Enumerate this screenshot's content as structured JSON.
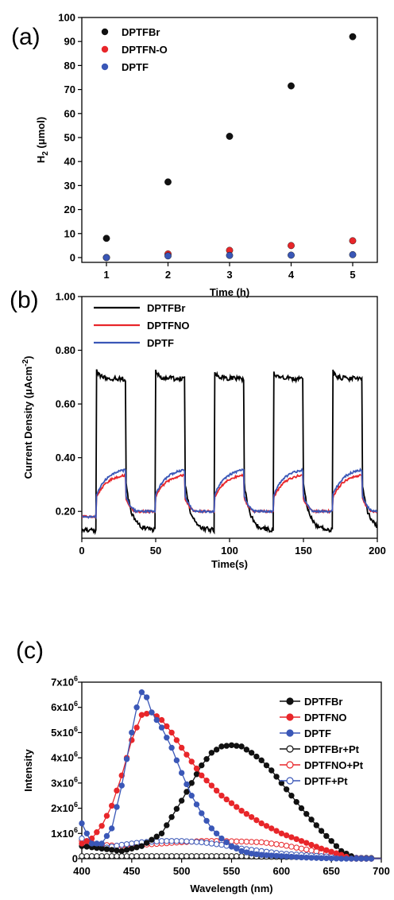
{
  "chart_data": [
    {
      "panel_label": "(a)",
      "type": "scatter",
      "xlabel": "Time (h)",
      "ylabel_main": "H",
      "ylabel_sub": "2",
      "ylabel_rest": " (μmol)",
      "xlim": [
        0.6,
        5.4
      ],
      "ylim": [
        -2,
        100
      ],
      "xticks": [
        "1",
        "2",
        "3",
        "4",
        "5"
      ],
      "xtick_values": [
        1,
        2,
        3,
        4,
        5
      ],
      "yticks": [
        "0",
        "10",
        "20",
        "30",
        "40",
        "50",
        "60",
        "70",
        "80",
        "90",
        "100"
      ],
      "ytick_values": [
        0,
        10,
        20,
        30,
        40,
        50,
        60,
        70,
        80,
        90,
        100
      ],
      "legend_position": "top-left",
      "series": [
        {
          "name": "DPTFBr",
          "color": "#111111",
          "x": [
            1,
            2,
            3,
            4,
            5
          ],
          "y": [
            8,
            31.5,
            50.5,
            71.5,
            92
          ]
        },
        {
          "name": "DPTFN-O",
          "color": "#e8262a",
          "x": [
            1,
            2,
            3,
            4,
            5
          ],
          "y": [
            0,
            1.5,
            3,
            5,
            7
          ]
        },
        {
          "name": "DPTF",
          "color": "#3a57b7",
          "x": [
            1,
            2,
            3,
            4,
            5
          ],
          "y": [
            0,
            0.7,
            0.9,
            1,
            1.2
          ]
        }
      ]
    },
    {
      "panel_label": "(b)",
      "type": "line",
      "xlabel": "Time(s)",
      "ylabel_main": "Current Density (μAcm",
      "ylabel_sup": "-2",
      "ylabel_rest": ")",
      "xlim": [
        0,
        200
      ],
      "ylim": [
        0.1,
        1.0
      ],
      "xticks": [
        "0",
        "50",
        "100",
        "150",
        "200"
      ],
      "xtick_values": [
        0,
        50,
        100,
        150,
        200
      ],
      "yticks": [
        "0.20",
        "0.40",
        "0.60",
        "0.80",
        "1.00"
      ],
      "ytick_values": [
        0.2,
        0.4,
        0.6,
        0.8,
        1.0
      ],
      "legend_position": "top-left",
      "light_on_s": [
        10,
        50,
        90,
        130,
        170
      ],
      "light_period_s": 20,
      "series": [
        {
          "name": "DPTFBr",
          "color": "#000000",
          "base": 0.13,
          "on": 0.7
        },
        {
          "name": "DPTFNO",
          "color": "#e8262a",
          "base": 0.18,
          "on": 0.34
        },
        {
          "name": "DPTF",
          "color": "#3a57b7",
          "base": 0.18,
          "on": 0.36
        }
      ]
    },
    {
      "panel_label": "(c)",
      "type": "line",
      "xlabel": "Wavelength (nm)",
      "ylabel": "Intensity",
      "xlim": [
        400,
        700
      ],
      "ylim": [
        0,
        7000000
      ],
      "xticks": [
        "400",
        "450",
        "500",
        "550",
        "600",
        "650",
        "700"
      ],
      "xtick_values": [
        400,
        450,
        500,
        550,
        600,
        650,
        700
      ],
      "yticks": [
        {
          "value": 0,
          "mant": "0",
          "exp": ""
        },
        {
          "value": 1000000,
          "mant": "1x10",
          "exp": "6"
        },
        {
          "value": 2000000,
          "mant": "2x10",
          "exp": "6"
        },
        {
          "value": 3000000,
          "mant": "3x10",
          "exp": "6"
        },
        {
          "value": 4000000,
          "mant": "4x10",
          "exp": "6"
        },
        {
          "value": 5000000,
          "mant": "5x10",
          "exp": "6"
        },
        {
          "value": 6000000,
          "mant": "6x10",
          "exp": "6"
        },
        {
          "value": 7000000,
          "mant": "7x10",
          "exp": "6"
        }
      ],
      "legend_position": "top-right",
      "series": [
        {
          "name": "DPTFBr",
          "color": "#111111",
          "filled": true,
          "x": [
            400,
            420,
            440,
            460,
            480,
            500,
            510,
            520,
            530,
            540,
            550,
            560,
            570,
            580,
            590,
            600,
            620,
            640,
            660,
            675,
            680,
            690,
            700
          ],
          "y": [
            500000,
            400000,
            300000,
            500000,
            1000000,
            2300000,
            3000000,
            3700000,
            4200000,
            4450000,
            4500000,
            4450000,
            4200000,
            3900000,
            3500000,
            3000000,
            2000000,
            1100000,
            300000,
            0,
            0,
            0,
            0
          ]
        },
        {
          "name": "DPTFNO",
          "color": "#e8262a",
          "filled": true,
          "x": [
            400,
            410,
            420,
            430,
            440,
            450,
            460,
            470,
            480,
            490,
            500,
            520,
            540,
            560,
            580,
            600,
            620,
            640,
            660,
            670,
            680,
            690,
            700
          ],
          "y": [
            600000,
            800000,
            1300000,
            2100000,
            3300000,
            4700000,
            5700000,
            5800000,
            5500000,
            5000000,
            4400000,
            3300000,
            2500000,
            1900000,
            1400000,
            1000000,
            700000,
            400000,
            150000,
            0,
            0,
            0,
            0
          ]
        },
        {
          "name": "DPTF",
          "color": "#3a57b7",
          "filled": true,
          "x": [
            400,
            410,
            420,
            430,
            440,
            450,
            455,
            460,
            465,
            470,
            480,
            490,
            500,
            510,
            520,
            530,
            540,
            550,
            560,
            570,
            580,
            600,
            620,
            640,
            660,
            680,
            700
          ],
          "y": [
            1400000,
            600000,
            600000,
            1200000,
            2900000,
            5000000,
            6000000,
            6600000,
            6400000,
            5800000,
            5200000,
            4400000,
            3400000,
            2500000,
            1800000,
            1200000,
            800000,
            500000,
            300000,
            200000,
            150000,
            100000,
            50000,
            20000,
            0,
            0,
            0
          ]
        },
        {
          "name": "DPTFBr+Pt",
          "color": "#111111",
          "filled": false,
          "x": [
            400,
            420,
            440,
            460,
            480,
            500,
            520,
            540,
            560,
            580,
            600,
            620,
            640,
            660,
            680,
            700
          ],
          "y": [
            100000,
            100000,
            100000,
            100000,
            100000,
            100000,
            100000,
            100000,
            100000,
            80000,
            70000,
            60000,
            50000,
            40000,
            30000,
            20000
          ]
        },
        {
          "name": "DPTFNO+Pt",
          "color": "#e8262a",
          "filled": false,
          "x": [
            400,
            420,
            440,
            460,
            480,
            500,
            520,
            540,
            560,
            580,
            600,
            620,
            640,
            660,
            670,
            680,
            700
          ],
          "y": [
            700000,
            550000,
            500000,
            550000,
            600000,
            650000,
            700000,
            700000,
            680000,
            650000,
            550000,
            400000,
            250000,
            100000,
            50000,
            20000,
            0
          ]
        },
        {
          "name": "DPTF+Pt",
          "color": "#3a57b7",
          "filled": false,
          "x": [
            400,
            420,
            440,
            460,
            480,
            500,
            520,
            540,
            560,
            580,
            600,
            620,
            640,
            660,
            680,
            700
          ],
          "y": [
            800000,
            400000,
            550000,
            650000,
            700000,
            700000,
            650000,
            550000,
            400000,
            300000,
            200000,
            150000,
            100000,
            50000,
            20000,
            0
          ]
        }
      ]
    }
  ]
}
